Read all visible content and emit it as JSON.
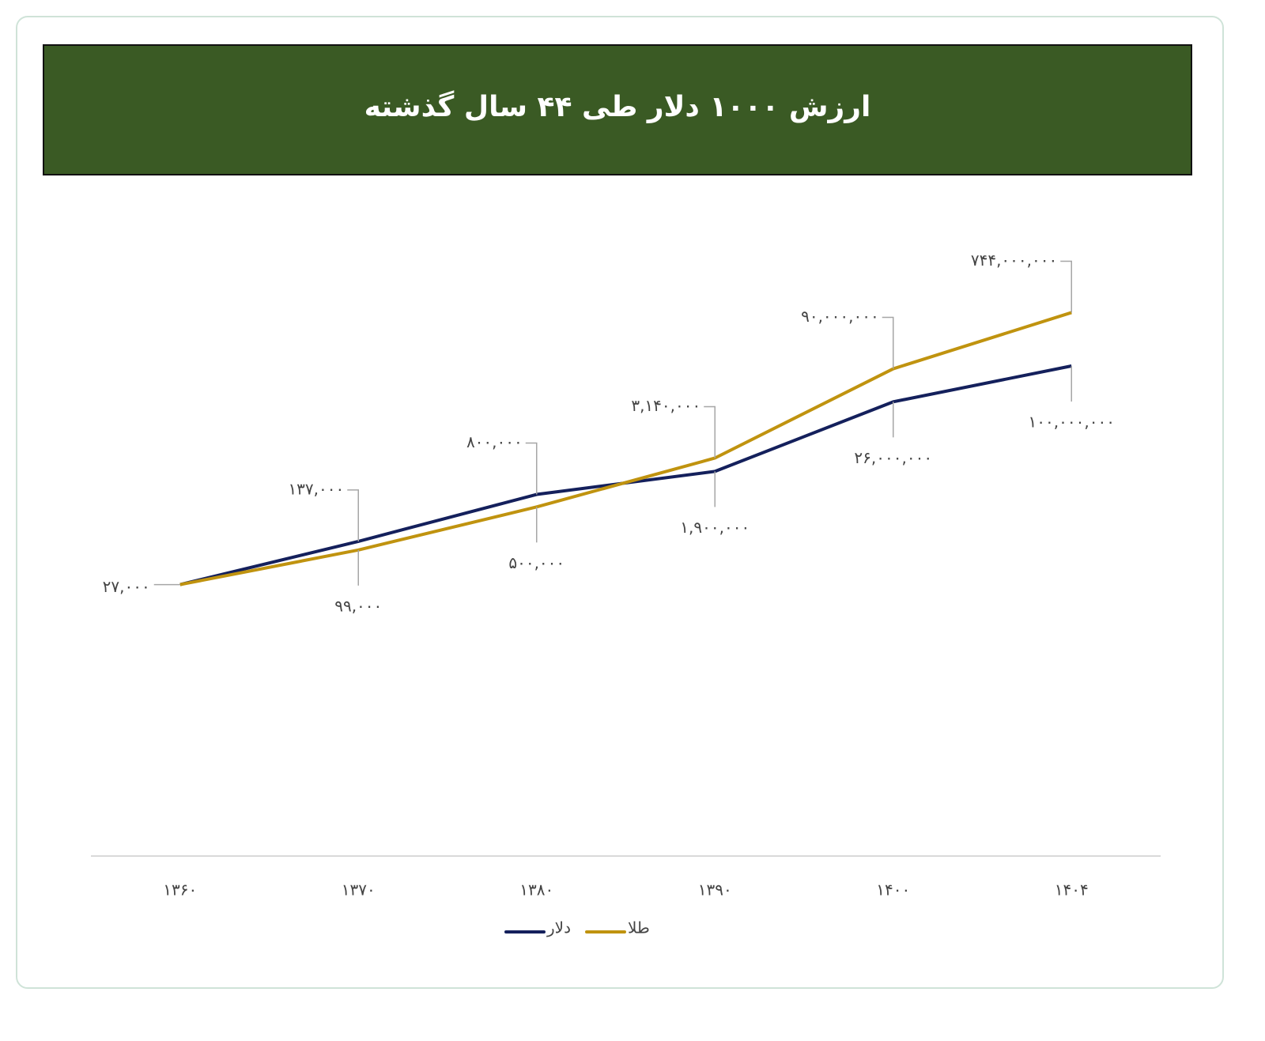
{
  "chart_data": {
    "type": "line",
    "title": "ارزش ۱۰۰۰ دلار طی ۴۴ سال گذشته",
    "categories": [
      "۱۳۶۰",
      "۱۳۷۰",
      "۱۳۸۰",
      "۱۳۹۰",
      "۱۴۰۰",
      "۱۴۰۴"
    ],
    "series": [
      {
        "name": "دلار",
        "color": "#14205c",
        "values": [
          27000,
          137000,
          800000,
          1900000,
          26000000,
          100000000
        ],
        "value_labels": [
          "۲۷,۰۰۰",
          "۱۳۷,۰۰۰",
          "۸۰۰,۰۰۰",
          "۱,۹۰۰,۰۰۰",
          "۲۶,۰۰۰,۰۰۰",
          "۱۰۰,۰۰۰,۰۰۰"
        ]
      },
      {
        "name": "طلا",
        "color": "#c0930f",
        "values": [
          27000,
          99000,
          500000,
          3140000,
          90000000,
          744000000
        ],
        "value_labels": [
          null,
          "۹۹,۰۰۰",
          "۵۰۰,۰۰۰",
          "۳,۱۴۰,۰۰۰",
          "۹۰,۰۰۰,۰۰۰",
          "۷۴۴,۰۰۰,۰۰۰"
        ]
      }
    ],
    "log_scale": true,
    "ylim": [
      1,
      10000000000
    ]
  }
}
